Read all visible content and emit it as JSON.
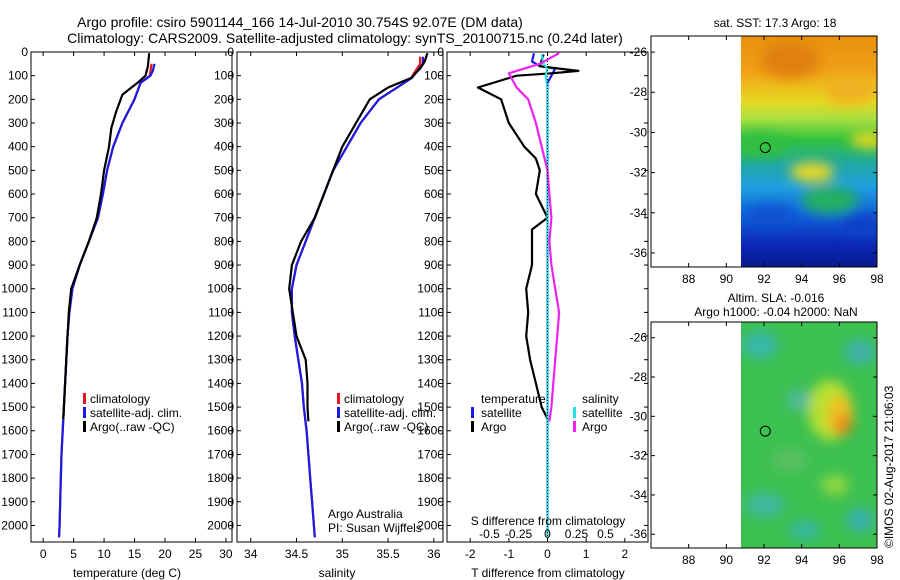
{
  "title": {
    "line1": "Argo profile: csiro 5901144_166 14-Jul-2010 30.754S 92.07E (DM data)",
    "line2": "Climatology: CARS2009. Satellite-adjusted climatology: synTS_20100715.nc (0.24d later)"
  },
  "credits": {
    "org": "Argo Australia",
    "pi": "PI: Susan Wijffels",
    "stamp": "©IMOS 02-Aug-2017 21:06:03"
  },
  "colors": {
    "climatology": "#e8141c",
    "satellite": "#1a1ae6",
    "argo": "#000000",
    "sal_satellite": "#22e0e6",
    "sal_argo": "#ee22ee"
  },
  "chart_data": [
    {
      "id": "temperature",
      "type": "line",
      "xlabel": "temperature (deg C)",
      "ylabel": "pressure",
      "xlim": [
        -2,
        31
      ],
      "ylim": [
        2070,
        0
      ],
      "xticks": [
        0,
        5,
        10,
        15,
        20,
        25,
        30
      ],
      "yticks": [
        0,
        100,
        200,
        300,
        400,
        500,
        600,
        700,
        800,
        900,
        1000,
        1100,
        1200,
        1300,
        1400,
        1500,
        1600,
        1700,
        1800,
        1900,
        2000
      ],
      "legend": [
        "climatology",
        "satellite-adj. clim.",
        "Argo(..raw -QC)"
      ],
      "series": [
        {
          "name": "climatology",
          "color": "#e8141c",
          "points": [
            [
              17.8,
              50
            ],
            [
              17.5,
              100
            ],
            [
              16.0,
              130
            ],
            [
              15.0,
              200
            ],
            [
              13.0,
              300
            ],
            [
              11.5,
              400
            ],
            [
              10.5,
              500
            ],
            [
              9.8,
              600
            ],
            [
              9.0,
              700
            ],
            [
              7.5,
              800
            ],
            [
              6.0,
              900
            ],
            [
              4.8,
              1000
            ],
            [
              4.3,
              1100
            ],
            [
              4.0,
              1200
            ],
            [
              3.8,
              1300
            ],
            [
              3.6,
              1400
            ],
            [
              3.4,
              1500
            ],
            [
              3.2,
              1600
            ],
            [
              3.0,
              1700
            ],
            [
              2.9,
              1800
            ],
            [
              2.8,
              1900
            ],
            [
              2.7,
              2000
            ],
            [
              2.6,
              2050
            ]
          ]
        },
        {
          "name": "satellite-adj. clim.",
          "color": "#1a1ae6",
          "points": [
            [
              18.3,
              50
            ],
            [
              18.0,
              80
            ],
            [
              17.6,
              100
            ],
            [
              16.0,
              130
            ],
            [
              15.0,
              200
            ],
            [
              13.0,
              300
            ],
            [
              11.5,
              400
            ],
            [
              10.5,
              500
            ],
            [
              9.8,
              600
            ],
            [
              9.0,
              700
            ],
            [
              7.5,
              800
            ],
            [
              6.0,
              900
            ],
            [
              4.8,
              1000
            ],
            [
              4.3,
              1100
            ],
            [
              4.0,
              1200
            ],
            [
              3.8,
              1300
            ],
            [
              3.6,
              1400
            ],
            [
              3.4,
              1500
            ],
            [
              3.2,
              1600
            ],
            [
              3.0,
              1700
            ],
            [
              2.9,
              1800
            ],
            [
              2.8,
              1900
            ],
            [
              2.7,
              2000
            ],
            [
              2.6,
              2050
            ]
          ]
        },
        {
          "name": "Argo(..raw -QC)",
          "color": "#000000",
          "points": [
            [
              17.4,
              5
            ],
            [
              17.2,
              60
            ],
            [
              16.8,
              100
            ],
            [
              15.5,
              130
            ],
            [
              13.0,
              180
            ],
            [
              12.0,
              250
            ],
            [
              11.2,
              320
            ],
            [
              10.8,
              400
            ],
            [
              10.0,
              500
            ],
            [
              9.5,
              600
            ],
            [
              8.8,
              700
            ],
            [
              7.5,
              800
            ],
            [
              6.0,
              900
            ],
            [
              4.6,
              1000
            ],
            [
              4.2,
              1100
            ],
            [
              4.0,
              1200
            ],
            [
              3.8,
              1300
            ],
            [
              3.6,
              1400
            ],
            [
              3.4,
              1500
            ],
            [
              3.3,
              1550
            ]
          ]
        }
      ]
    },
    {
      "id": "salinity",
      "type": "line",
      "xlabel": "salinity",
      "ylabel": "pressure",
      "xlim": [
        33.85,
        36.1
      ],
      "ylim": [
        2070,
        0
      ],
      "xticks": [
        34,
        34.5,
        35,
        35.5,
        36
      ],
      "yticks": [
        0,
        100,
        200,
        300,
        400,
        500,
        600,
        700,
        800,
        900,
        1000,
        1100,
        1200,
        1300,
        1400,
        1500,
        1600,
        1700,
        1800,
        1900,
        2000
      ],
      "legend": [
        "climatology",
        "satellite-adj. clim.",
        "Argo(..raw -QC)"
      ],
      "series": [
        {
          "name": "climatology",
          "color": "#e8141c",
          "points": [
            [
              35.85,
              20
            ],
            [
              35.85,
              50
            ],
            [
              35.8,
              80
            ],
            [
              35.75,
              110
            ],
            [
              35.6,
              150
            ],
            [
              35.4,
              200
            ],
            [
              35.2,
              300
            ],
            [
              35.05,
              400
            ],
            [
              34.9,
              500
            ],
            [
              34.8,
              600
            ],
            [
              34.7,
              700
            ],
            [
              34.6,
              800
            ],
            [
              34.5,
              900
            ],
            [
              34.45,
              1000
            ],
            [
              34.45,
              1100
            ],
            [
              34.48,
              1200
            ],
            [
              34.52,
              1300
            ],
            [
              34.56,
              1400
            ],
            [
              34.58,
              1500
            ],
            [
              34.61,
              1600
            ],
            [
              34.63,
              1700
            ],
            [
              34.65,
              1800
            ],
            [
              34.67,
              1900
            ],
            [
              34.69,
              2000
            ],
            [
              34.7,
              2050
            ]
          ]
        },
        {
          "name": "satellite-adj. clim.",
          "color": "#1a1ae6",
          "points": [
            [
              35.88,
              20
            ],
            [
              35.88,
              50
            ],
            [
              35.82,
              80
            ],
            [
              35.76,
              110
            ],
            [
              35.6,
              150
            ],
            [
              35.4,
              200
            ],
            [
              35.2,
              300
            ],
            [
              35.05,
              400
            ],
            [
              34.9,
              500
            ],
            [
              34.8,
              600
            ],
            [
              34.7,
              700
            ],
            [
              34.6,
              800
            ],
            [
              34.5,
              900
            ],
            [
              34.45,
              1000
            ],
            [
              34.45,
              1100
            ],
            [
              34.48,
              1200
            ],
            [
              34.52,
              1300
            ],
            [
              34.56,
              1400
            ],
            [
              34.58,
              1500
            ],
            [
              34.61,
              1600
            ],
            [
              34.63,
              1700
            ],
            [
              34.65,
              1800
            ],
            [
              34.67,
              1900
            ],
            [
              34.69,
              2000
            ],
            [
              34.7,
              2050
            ]
          ]
        },
        {
          "name": "Argo(..raw -QC)",
          "color": "#000000",
          "points": [
            [
              35.93,
              5
            ],
            [
              35.9,
              40
            ],
            [
              35.85,
              70
            ],
            [
              35.75,
              110
            ],
            [
              35.5,
              150
            ],
            [
              35.3,
              200
            ],
            [
              35.15,
              300
            ],
            [
              35.0,
              400
            ],
            [
              34.9,
              500
            ],
            [
              34.8,
              600
            ],
            [
              34.7,
              700
            ],
            [
              34.55,
              800
            ],
            [
              34.45,
              900
            ],
            [
              34.42,
              1000
            ],
            [
              34.46,
              1100
            ],
            [
              34.5,
              1200
            ],
            [
              34.55,
              1250
            ],
            [
              34.6,
              1300
            ],
            [
              34.62,
              1400
            ],
            [
              34.62,
              1500
            ],
            [
              34.63,
              1560
            ]
          ]
        }
      ]
    },
    {
      "id": "differences",
      "type": "line",
      "xlabel": "T difference from climatology",
      "xlabel_top": "S difference from climatology",
      "ylabel": "pressure",
      "xlim": [
        -2.6,
        2.6
      ],
      "ylim": [
        2070,
        0
      ],
      "xticks": [
        -2,
        -1,
        0,
        1,
        2
      ],
      "xticks_top": [
        {
          "v": -1.5,
          "label": "-0.5"
        },
        {
          "v": -0.75,
          "label": "-0.25"
        },
        {
          "v": 0,
          "label": "0"
        },
        {
          "v": 0.75,
          "label": "0.25"
        },
        {
          "v": 1.5,
          "label": "0.5"
        }
      ],
      "yticks": [
        0,
        100,
        200,
        300,
        400,
        500,
        600,
        700,
        800,
        900,
        1000,
        1100,
        1200,
        1300,
        1400,
        1500,
        1600,
        1700,
        1800,
        1900,
        2000
      ],
      "legend_temperature_heading": "temperature",
      "legend_salinity_heading": "salinity",
      "legend": [
        "satellite",
        "Argo",
        "satellite",
        "Argo"
      ],
      "series": [
        {
          "name": "temperature satellite",
          "color": "#1a1ae6",
          "points": [
            [
              -0.35,
              5
            ],
            [
              -0.4,
              40
            ],
            [
              -0.2,
              60
            ],
            [
              0.2,
              70
            ],
            [
              0.1,
              100
            ],
            [
              0,
              130
            ],
            [
              0,
              2050
            ]
          ]
        },
        {
          "name": "temperature Argo",
          "color": "#000000",
          "points": [
            [
              -0.1,
              10
            ],
            [
              -0.2,
              60
            ],
            [
              0.3,
              70
            ],
            [
              0.8,
              80
            ],
            [
              0.1,
              90
            ],
            [
              -0.8,
              100
            ],
            [
              -1.8,
              150
            ],
            [
              -1.2,
              200
            ],
            [
              -1.0,
              300
            ],
            [
              -0.6,
              400
            ],
            [
              -0.3,
              450
            ],
            [
              -0.2,
              500
            ],
            [
              -0.3,
              600
            ],
            [
              0,
              700
            ],
            [
              -0.4,
              750
            ],
            [
              -0.4,
              800
            ],
            [
              -0.4,
              900
            ],
            [
              -0.55,
              1000
            ],
            [
              -0.5,
              1100
            ],
            [
              -0.55,
              1200
            ],
            [
              -0.45,
              1300
            ],
            [
              -0.3,
              1400
            ],
            [
              -0.15,
              1500
            ],
            [
              0,
              1550
            ]
          ]
        },
        {
          "name": "salinity satellite",
          "color": "#22e0e6",
          "points": [
            [
              -0.15,
              10
            ],
            [
              -0.1,
              50
            ],
            [
              0,
              70
            ],
            [
              -0.05,
              100
            ],
            [
              0,
              150
            ],
            [
              0,
              300
            ],
            [
              0,
              500
            ],
            [
              0,
              800
            ],
            [
              0,
              1200
            ],
            [
              0,
              1600
            ],
            [
              0,
              2050
            ]
          ]
        },
        {
          "name": "salinity Argo",
          "color": "#ee22ee",
          "points": [
            [
              0.3,
              5
            ],
            [
              -0.2,
              50
            ],
            [
              -1.0,
              90
            ],
            [
              -0.8,
              150
            ],
            [
              -0.5,
              200
            ],
            [
              -0.3,
              300
            ],
            [
              -0.15,
              400
            ],
            [
              0,
              500
            ],
            [
              0.05,
              600
            ],
            [
              0.1,
              700
            ],
            [
              0.05,
              800
            ],
            [
              0.1,
              900
            ],
            [
              0.2,
              1000
            ],
            [
              0.3,
              1100
            ],
            [
              0.25,
              1200
            ],
            [
              0.2,
              1300
            ],
            [
              0.15,
              1400
            ],
            [
              0.1,
              1500
            ],
            [
              0.05,
              1560
            ]
          ]
        }
      ]
    },
    {
      "id": "sst_map",
      "type": "heatmap",
      "title": "sat. SST: 17.3 Argo: 18",
      "xlim": [
        86,
        98
      ],
      "ylim": [
        -36.7,
        -25.2
      ],
      "xticks": [
        88,
        90,
        92,
        94,
        96,
        98
      ],
      "yticks": [
        -26,
        -28,
        -30,
        -32,
        -34,
        -36
      ],
      "data_extent_x": [
        90,
        98
      ],
      "argo_position": [
        92.07,
        -30.754
      ]
    },
    {
      "id": "sla_map",
      "type": "heatmap",
      "title_line1": "Altim. SLA: -0.016",
      "title_line2": "Argo h1000: -0.04 h2000: NaN",
      "xlim": [
        86,
        98
      ],
      "ylim": [
        -36.7,
        -25.2
      ],
      "xticks": [
        88,
        90,
        92,
        94,
        96,
        98
      ],
      "yticks": [
        -26,
        -28,
        -30,
        -32,
        -34,
        -36
      ],
      "data_extent_x": [
        90,
        98
      ],
      "argo_position": [
        92.07,
        -30.754
      ]
    }
  ]
}
